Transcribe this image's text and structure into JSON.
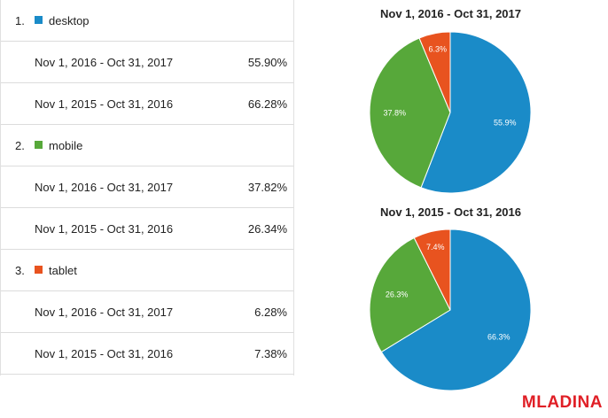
{
  "colors": {
    "desktop": "#1a8bc8",
    "mobile": "#57a83a",
    "tablet": "#e8531f",
    "logo": "#e01f26"
  },
  "table": {
    "groups": [
      {
        "num": "1.",
        "label": "desktop",
        "color": "#1a8bc8",
        "rows": [
          {
            "period": "Nov 1, 2016 - Oct 31, 2017",
            "value": "55.90%"
          },
          {
            "period": "Nov 1, 2015 - Oct 31, 2016",
            "value": "66.28%"
          }
        ]
      },
      {
        "num": "2.",
        "label": "mobile",
        "color": "#57a83a",
        "rows": [
          {
            "period": "Nov 1, 2016 - Oct 31, 2017",
            "value": "37.82%"
          },
          {
            "period": "Nov 1, 2015 - Oct 31, 2016",
            "value": "26.34%"
          }
        ]
      },
      {
        "num": "3.",
        "label": "tablet",
        "color": "#e8531f",
        "rows": [
          {
            "period": "Nov 1, 2016 - Oct 31, 2017",
            "value": "6.28%"
          },
          {
            "period": "Nov 1, 2015 - Oct 31, 2016",
            "value": "7.38%"
          }
        ]
      }
    ]
  },
  "chart_data": [
    {
      "type": "pie",
      "title": "Nov 1, 2016 - Oct 31, 2017",
      "categories": [
        "desktop",
        "mobile",
        "tablet"
      ],
      "values": [
        55.9,
        37.82,
        6.28
      ],
      "labels": [
        "55.9%",
        "37.8%",
        "6.3%"
      ],
      "colors": [
        "#1a8bc8",
        "#57a83a",
        "#e8531f"
      ]
    },
    {
      "type": "pie",
      "title": "Nov 1, 2015 - Oct 31, 2016",
      "categories": [
        "desktop",
        "mobile",
        "tablet"
      ],
      "values": [
        66.28,
        26.34,
        7.38
      ],
      "labels": [
        "66.3%",
        "26.3%",
        "7.4%"
      ],
      "colors": [
        "#1a8bc8",
        "#57a83a",
        "#e8531f"
      ]
    }
  ],
  "logo": {
    "text": "MLADINA"
  }
}
